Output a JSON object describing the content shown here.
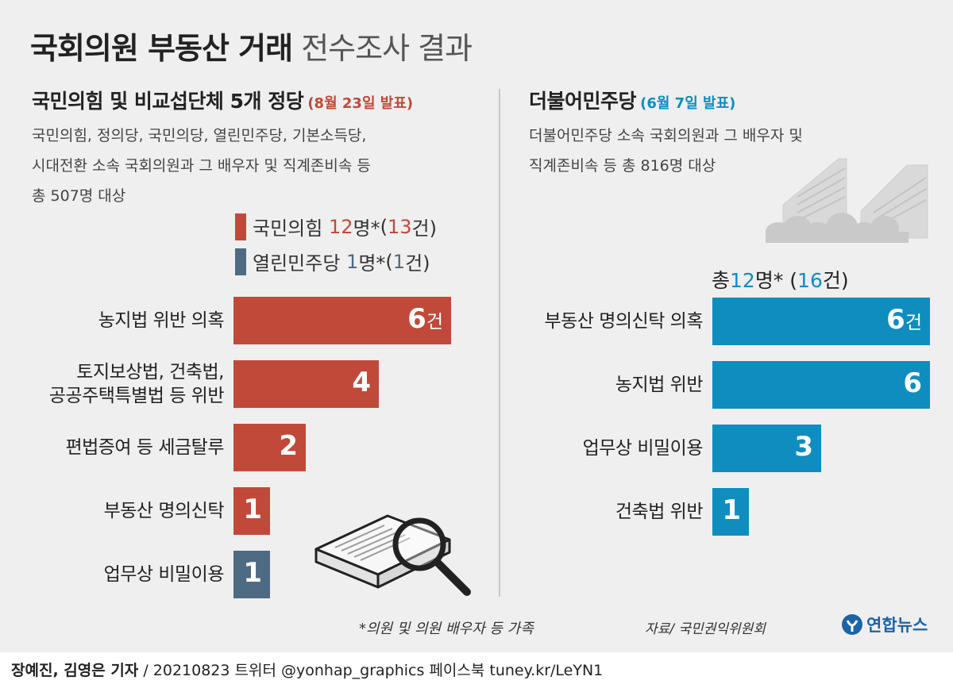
{
  "title": {
    "bold": "국회의원 부동산 거래",
    "normal": "전수조사 결과"
  },
  "left": {
    "heading": "국민의힘 및 비교섭단체 5개 정당",
    "date": "(8월 23일 발표)",
    "desc": [
      "국민의힘, 정의당, 국민의당, 열린민주당, 기본소득당,",
      "시대전환 소속 국회의원과 그 배우자 및 직계존비속 등",
      "총 507명 대상"
    ],
    "legend": [
      {
        "party": "국민의힘",
        "people": "12",
        "people_unit": "명*",
        "cases_open": " (",
        "cases": "13",
        "cases_close": "건)"
      },
      {
        "party": "열린민주당",
        "people": "1",
        "people_unit": "명*",
        "cases_open": " (",
        "cases": "1",
        "cases_close": "건)"
      }
    ]
  },
  "right": {
    "heading": "더불어민주당",
    "date": "(6월 7일 발표)",
    "desc": [
      "더불어민주당 소속 국회의원과 그 배우자 및",
      "직계존비속 등 총 816명 대상"
    ],
    "total": {
      "prefix": "총",
      "people": "12",
      "people_unit": "명*",
      "cases_open": " (",
      "cases": "16",
      "cases_close": "건)"
    }
  },
  "colors": {
    "red": "#c0493a",
    "slate": "#4f6a83",
    "cyan": "#0f8dbf",
    "divider": "#c8c8c8"
  },
  "chart_data": [
    {
      "type": "bar",
      "orientation": "horizontal",
      "categories": [
        [
          "농지법 위반 의혹"
        ],
        [
          "토지보상법, 건축법,",
          "공공주택특별법 등 위반"
        ],
        [
          "편법증여 등 세금탈루"
        ],
        [
          "부동산 명의신탁"
        ],
        [
          "업무상 비밀이용"
        ]
      ],
      "values": [
        6,
        4,
        2,
        1,
        1
      ],
      "value_labels": [
        "6",
        "4",
        "2",
        "1",
        "1"
      ],
      "unit_on_first": "건",
      "bar_colors": [
        "#c0493a",
        "#c0493a",
        "#c0493a",
        "#c0493a",
        "#4f6a83"
      ],
      "xlim": [
        0,
        6
      ]
    },
    {
      "type": "bar",
      "orientation": "horizontal",
      "categories": [
        [
          "부동산 명의신탁 의혹"
        ],
        [
          "농지법 위반"
        ],
        [
          "업무상 비밀이용"
        ],
        [
          "건축법 위반"
        ]
      ],
      "values": [
        6,
        6,
        3,
        1
      ],
      "value_labels": [
        "6",
        "6",
        "3",
        "1"
      ],
      "unit_on_first": "건",
      "bar_colors": [
        "#0f8dbf",
        "#0f8dbf",
        "#0f8dbf",
        "#0f8dbf"
      ],
      "xlim": [
        0,
        6
      ]
    }
  ],
  "footnote": "*의원 및 의원 배우자 등 가족",
  "source": "자료/ 국민권익위원회",
  "brand": {
    "name": "연합뉴스",
    "icon": "yonhap-logo-icon"
  },
  "byline": {
    "reporters": "장예진, 김영은 기자",
    "rest": " / 20210823 트위터 @yonhap_graphics  페이스북 tuney.kr/LeYN1"
  }
}
